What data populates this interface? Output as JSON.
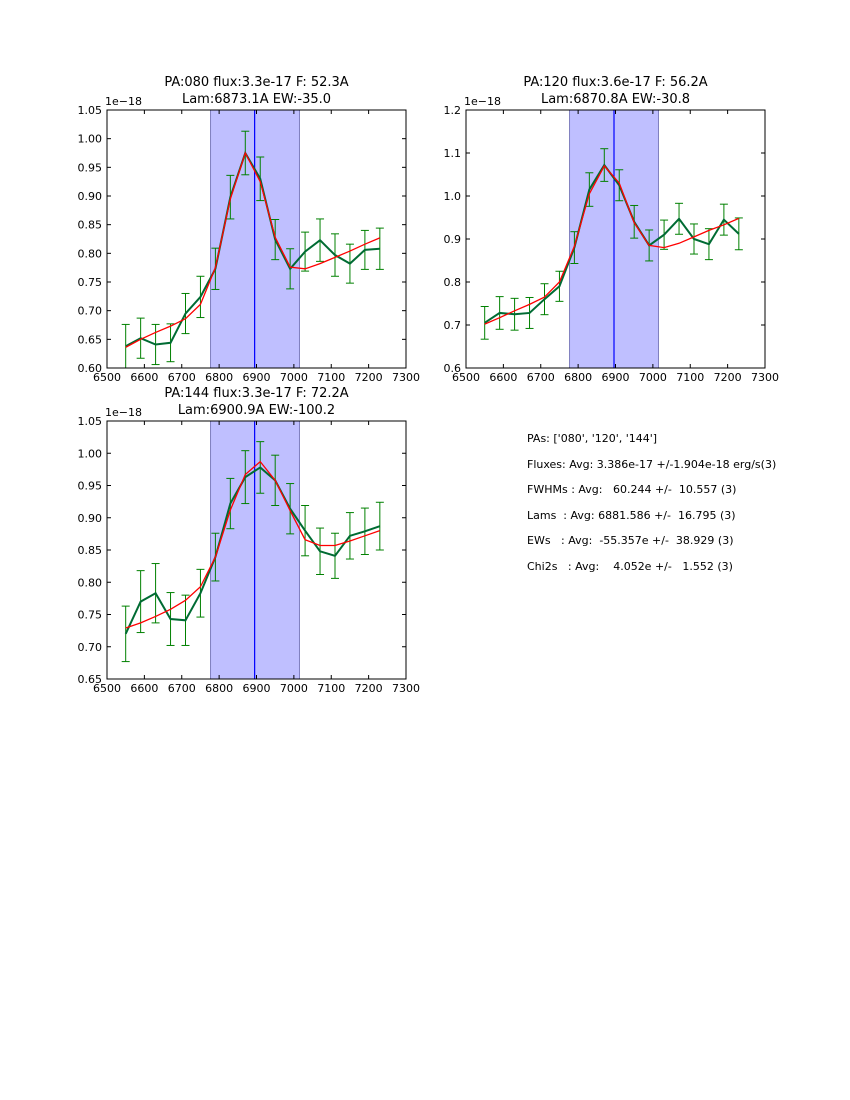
{
  "colors": {
    "data_line": "#006b33",
    "errorbar": "#008000",
    "fit": "#ff0000",
    "span_fill": "#bfbfff",
    "span_edge": "#7f7fbf",
    "center_line": "#0000ff"
  },
  "chart_data": [
    {
      "type": "line",
      "title_line1": "PA:080 flux:3.3e-17 F: 52.3A",
      "title_line2": "Lam:6873.1A EW:-35.0",
      "offset_label": "1e−18",
      "xlim": [
        6500,
        7300
      ],
      "ylim": [
        0.6,
        1.05
      ],
      "xticks": [
        "6500",
        "6600",
        "6700",
        "6800",
        "6900",
        "7000",
        "7100",
        "7200",
        "7300"
      ],
      "yticks": [
        "0.60",
        "0.65",
        "0.70",
        "0.75",
        "0.80",
        "0.85",
        "0.90",
        "0.95",
        "1.00",
        "1.05"
      ],
      "span": [
        6777,
        7015
      ],
      "center_line": 6895,
      "x": [
        6550,
        6590,
        6630,
        6670,
        6710,
        6750,
        6790,
        6830,
        6870,
        6910,
        6950,
        6990,
        7030,
        7070,
        7110,
        7150,
        7190,
        7230
      ],
      "series": [
        {
          "name": "data",
          "values": [
            0.638,
            0.652,
            0.641,
            0.644,
            0.695,
            0.724,
            0.773,
            0.898,
            0.975,
            0.93,
            0.824,
            0.773,
            0.803,
            0.823,
            0.797,
            0.782,
            0.806,
            0.808
          ],
          "errors": [
            0.038,
            0.035,
            0.035,
            0.033,
            0.035,
            0.036,
            0.036,
            0.038,
            0.038,
            0.038,
            0.035,
            0.035,
            0.034,
            0.037,
            0.037,
            0.034,
            0.034,
            0.036
          ]
        },
        {
          "name": "fit",
          "values": [
            0.636,
            0.65,
            0.662,
            0.673,
            0.686,
            0.711,
            0.775,
            0.895,
            0.975,
            0.925,
            0.828,
            0.776,
            0.773,
            0.782,
            0.793,
            0.804,
            0.816,
            0.827
          ]
        }
      ]
    },
    {
      "type": "line",
      "title_line1": "PA:120 flux:3.6e-17 F: 56.2A",
      "title_line2": "Lam:6870.8A EW:-30.8",
      "offset_label": "1e−18",
      "xlim": [
        6500,
        7300
      ],
      "ylim": [
        0.6,
        1.2
      ],
      "xticks": [
        "6500",
        "6600",
        "6700",
        "6800",
        "6900",
        "7000",
        "7100",
        "7200",
        "7300"
      ],
      "yticks": [
        "0.6",
        "0.7",
        "0.8",
        "0.9",
        "1.0",
        "1.1",
        "1.2"
      ],
      "span": [
        6777,
        7015
      ],
      "center_line": 6896,
      "x": [
        6550,
        6590,
        6630,
        6670,
        6710,
        6750,
        6790,
        6830,
        6870,
        6910,
        6950,
        6990,
        7030,
        7070,
        7110,
        7150,
        7190,
        7230
      ],
      "series": [
        {
          "name": "data",
          "values": [
            0.705,
            0.728,
            0.725,
            0.728,
            0.76,
            0.79,
            0.88,
            1.015,
            1.072,
            1.025,
            0.94,
            0.885,
            0.91,
            0.947,
            0.9,
            0.888,
            0.945,
            0.912
          ],
          "errors": [
            0.038,
            0.038,
            0.037,
            0.036,
            0.036,
            0.035,
            0.037,
            0.039,
            0.038,
            0.036,
            0.038,
            0.036,
            0.034,
            0.036,
            0.035,
            0.036,
            0.036,
            0.037
          ]
        },
        {
          "name": "fit",
          "values": [
            0.702,
            0.717,
            0.733,
            0.748,
            0.765,
            0.8,
            0.883,
            1.005,
            1.07,
            1.03,
            0.938,
            0.885,
            0.88,
            0.89,
            0.905,
            0.92,
            0.933,
            0.948
          ]
        }
      ]
    },
    {
      "type": "line",
      "title_line1": "PA:144 flux:3.3e-17 F: 72.2A",
      "title_line2": "Lam:6900.9A EW:-100.2",
      "offset_label": "1e−18",
      "xlim": [
        6500,
        7300
      ],
      "ylim": [
        0.65,
        1.05
      ],
      "xticks": [
        "6500",
        "6600",
        "6700",
        "6800",
        "6900",
        "7000",
        "7100",
        "7200",
        "7300"
      ],
      "yticks": [
        "0.65",
        "0.70",
        "0.75",
        "0.80",
        "0.85",
        "0.90",
        "0.95",
        "1.00",
        "1.05"
      ],
      "span": [
        6777,
        7015
      ],
      "center_line": 6895,
      "x": [
        6550,
        6590,
        6630,
        6670,
        6710,
        6750,
        6790,
        6830,
        6870,
        6910,
        6950,
        6990,
        7030,
        7070,
        7110,
        7150,
        7190,
        7230
      ],
      "series": [
        {
          "name": "data",
          "values": [
            0.72,
            0.77,
            0.783,
            0.743,
            0.741,
            0.783,
            0.839,
            0.922,
            0.963,
            0.978,
            0.958,
            0.914,
            0.88,
            0.848,
            0.841,
            0.872,
            0.879,
            0.887
          ],
          "errors": [
            0.043,
            0.048,
            0.046,
            0.041,
            0.039,
            0.037,
            0.037,
            0.039,
            0.041,
            0.04,
            0.039,
            0.039,
            0.039,
            0.036,
            0.035,
            0.036,
            0.036,
            0.037
          ]
        },
        {
          "name": "fit",
          "values": [
            0.729,
            0.737,
            0.747,
            0.758,
            0.772,
            0.793,
            0.839,
            0.912,
            0.967,
            0.987,
            0.958,
            0.911,
            0.866,
            0.857,
            0.857,
            0.864,
            0.872,
            0.88
          ]
        }
      ]
    }
  ],
  "stats": {
    "pas": "PAs: ['080', '120', '144']",
    "fluxes": "Fluxes: Avg: 3.386e-17 +/-1.904e-18 erg/s(3)",
    "fwhms": "FWHMs : Avg:   60.244 +/-  10.557 (3)",
    "lams": "Lams  : Avg: 6881.586 +/-  16.795 (3)",
    "ews": "EWs   : Avg:  -55.357e +/-  38.929 (3)",
    "chi2s": "Chi2s   : Avg:    4.052e +/-   1.552 (3)"
  }
}
